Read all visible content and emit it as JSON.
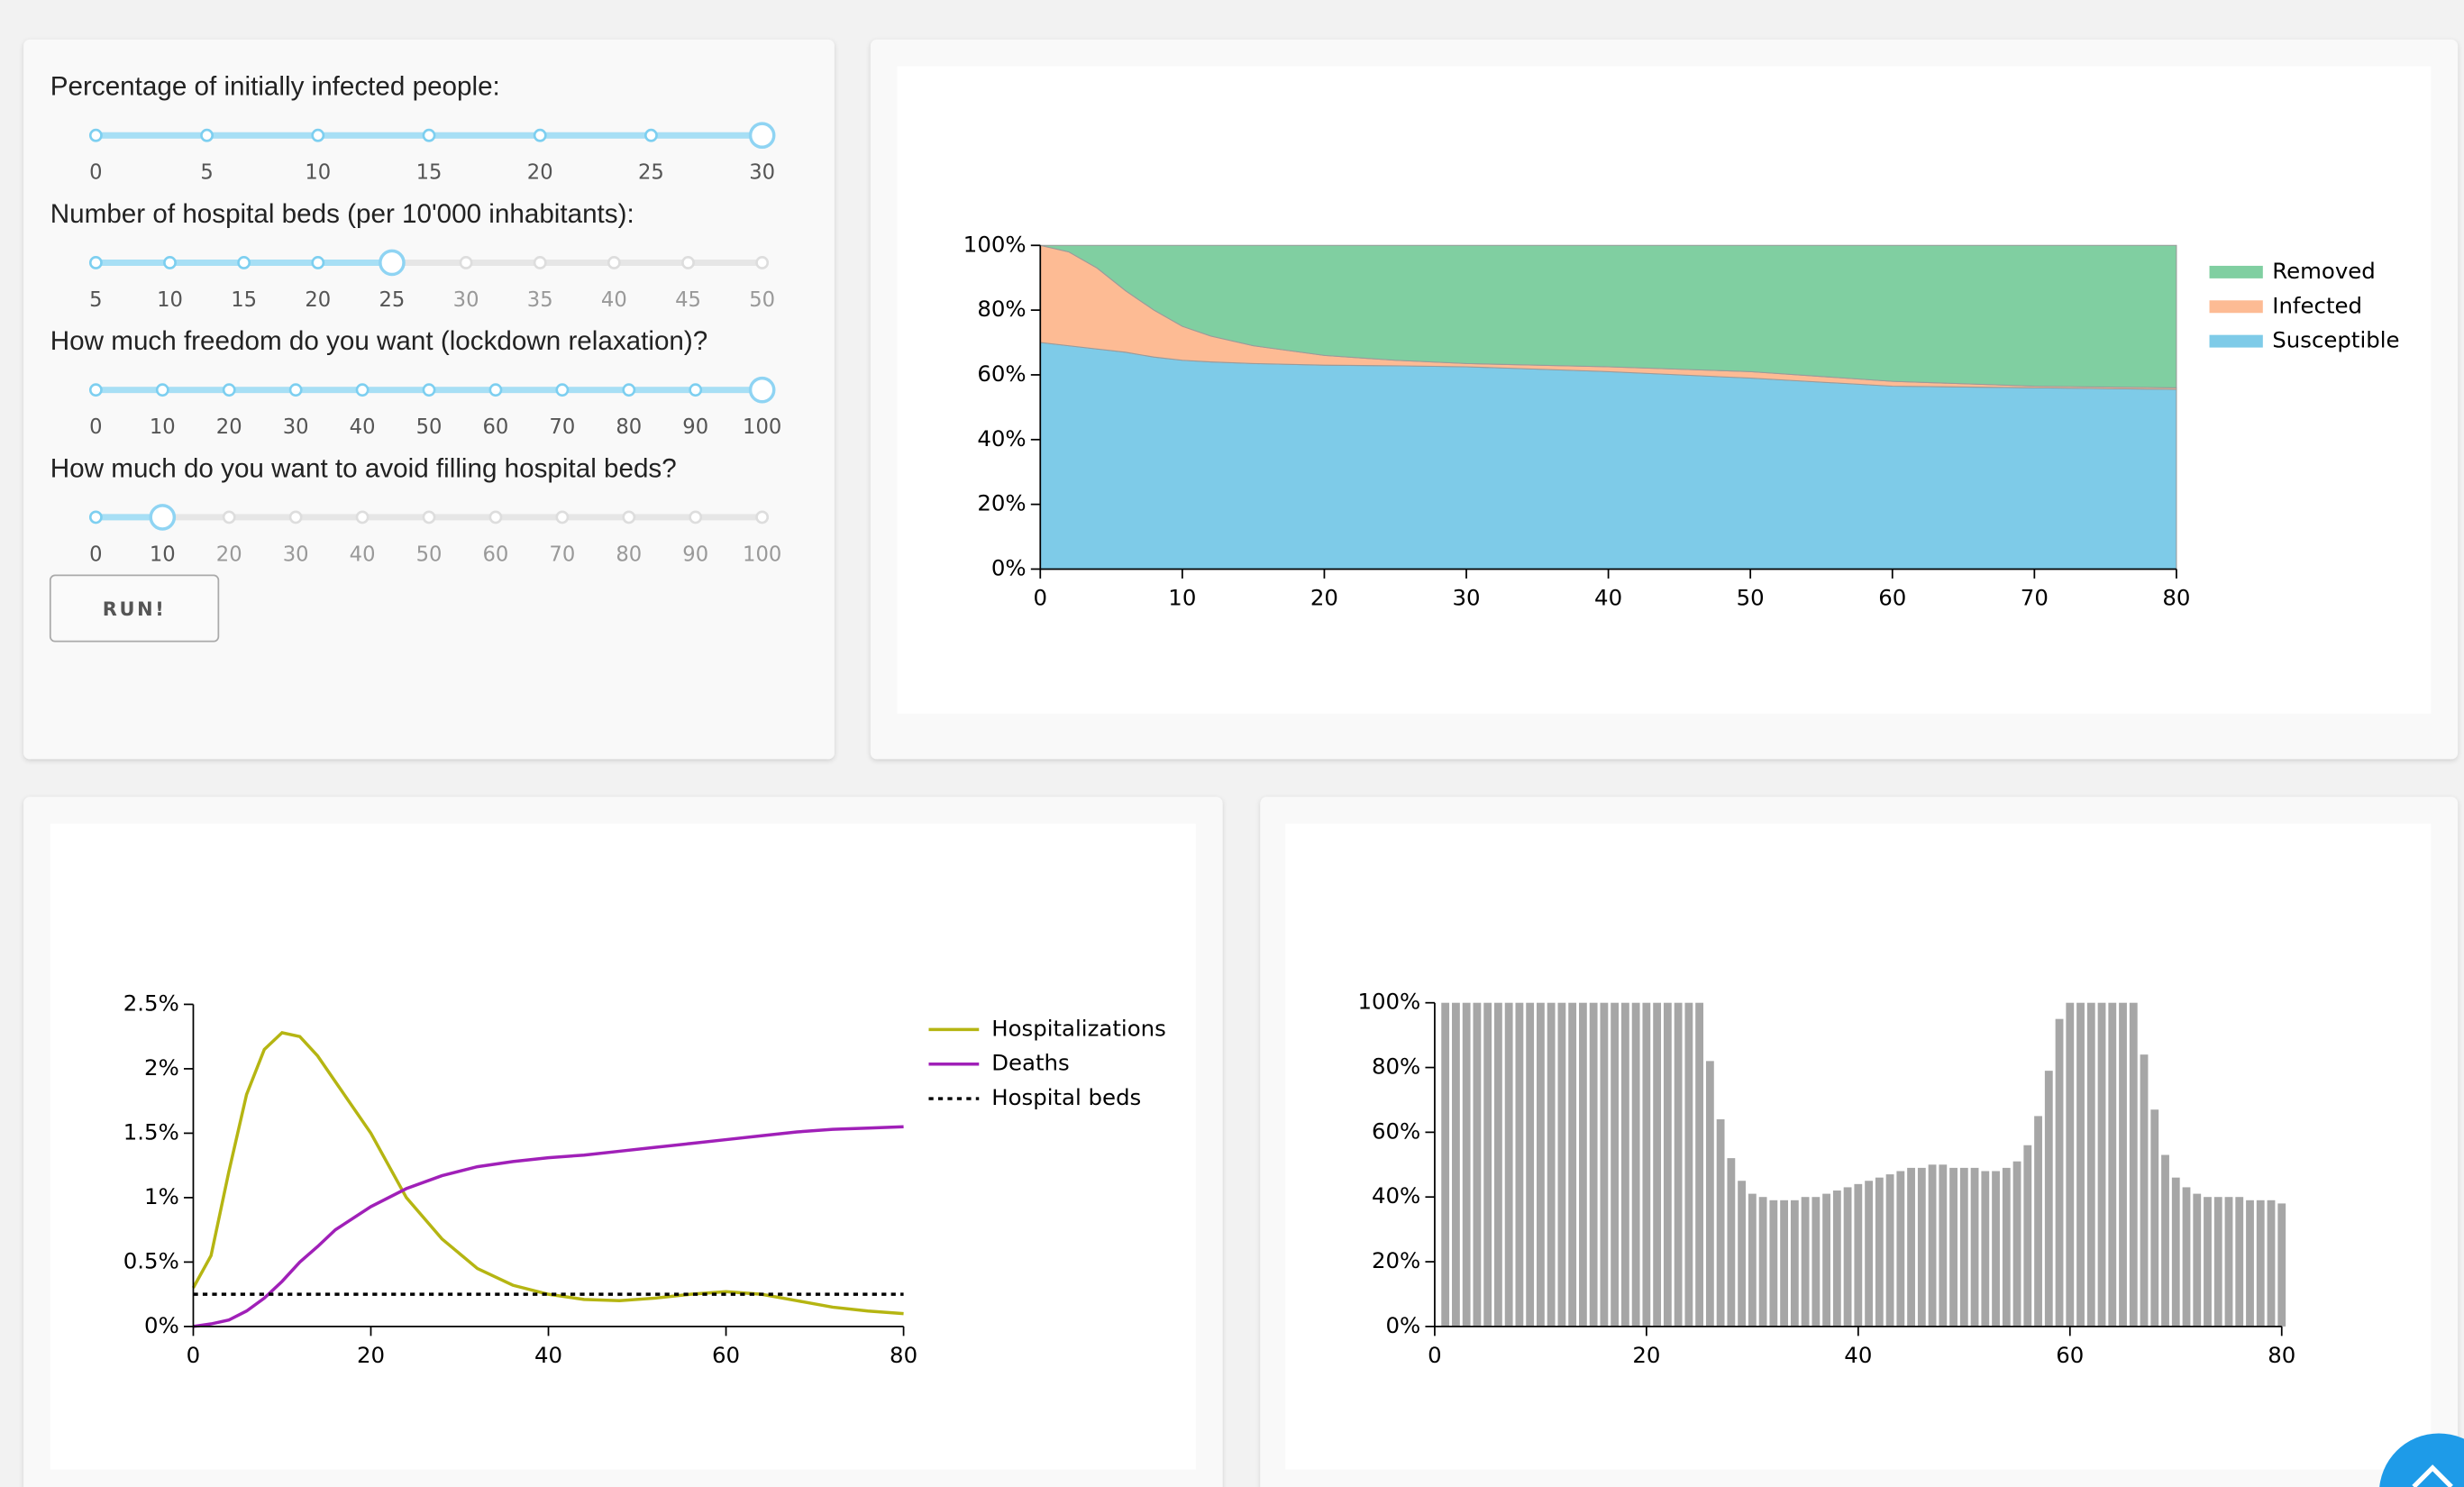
{
  "controls": {
    "sliders": [
      {
        "label": "Percentage of initially infected people:",
        "ticks": [
          0,
          5,
          10,
          15,
          20,
          25,
          30
        ],
        "value": 30
      },
      {
        "label": "Number of hospital beds (per 10'000 inhabitants):",
        "ticks": [
          5,
          10,
          15,
          20,
          25,
          30,
          35,
          40,
          45,
          50
        ],
        "value": 25
      },
      {
        "label": "How much freedom do you want (lockdown relaxation)?",
        "ticks": [
          0,
          10,
          20,
          30,
          40,
          50,
          60,
          70,
          80,
          90,
          100
        ],
        "value": 100
      },
      {
        "label": "How much do you want to avoid filling hospital beds?",
        "ticks": [
          0,
          10,
          20,
          30,
          40,
          50,
          60,
          70,
          80,
          90,
          100
        ],
        "value": 10
      }
    ],
    "button": "RUN!"
  },
  "chart_data": [
    {
      "type": "area",
      "x": [
        0,
        2,
        4,
        6,
        8,
        10,
        12,
        15,
        20,
        25,
        30,
        40,
        50,
        60,
        70,
        80
      ],
      "series": [
        {
          "name": "Susceptible",
          "color": "#7ecbe8",
          "values": [
            70,
            69,
            68,
            67,
            65.5,
            64.5,
            64,
            63.5,
            63,
            62.8,
            62.5,
            61,
            59,
            56.5,
            56,
            55.5
          ]
        },
        {
          "name": "Infected",
          "color": "#fdbb94",
          "values": [
            30,
            29,
            25,
            19,
            14.5,
            10.5,
            8,
            5.5,
            3,
            1.7,
            1,
            1.5,
            2,
            1.5,
            0.5,
            0.5
          ]
        },
        {
          "name": "Removed",
          "color": "#80cfa1",
          "values": [
            0,
            2,
            7,
            14,
            20,
            25,
            28,
            31,
            34,
            35.5,
            36.5,
            37.5,
            39,
            42,
            43.5,
            44
          ]
        }
      ],
      "xlim": [
        0,
        80
      ],
      "xticks": [
        0,
        10,
        20,
        30,
        40,
        50,
        60,
        70,
        80
      ],
      "ylim": [
        0,
        100
      ],
      "yticks": [
        {
          "value": 0,
          "label": "0%"
        },
        {
          "value": 20,
          "label": "20%"
        },
        {
          "value": 40,
          "label": "40%"
        },
        {
          "value": 60,
          "label": "60%"
        },
        {
          "value": 80,
          "label": "80%"
        },
        {
          "value": 100,
          "label": "100%"
        }
      ]
    },
    {
      "type": "line",
      "x": [
        0,
        2,
        4,
        6,
        8,
        10,
        12,
        14,
        16,
        20,
        24,
        28,
        32,
        36,
        40,
        44,
        48,
        52,
        56,
        60,
        64,
        68,
        72,
        76,
        80
      ],
      "series": [
        {
          "name": "Hospitalizations",
          "color": "#b5b512",
          "values": [
            0.3,
            0.55,
            1.2,
            1.8,
            2.15,
            2.28,
            2.25,
            2.1,
            1.9,
            1.5,
            1.0,
            0.68,
            0.45,
            0.32,
            0.25,
            0.21,
            0.2,
            0.22,
            0.25,
            0.27,
            0.25,
            0.2,
            0.15,
            0.12,
            0.1
          ]
        },
        {
          "name": "Deaths",
          "color": "#a020b8",
          "values": [
            0,
            0.02,
            0.05,
            0.12,
            0.22,
            0.35,
            0.5,
            0.62,
            0.75,
            0.93,
            1.07,
            1.17,
            1.24,
            1.28,
            1.31,
            1.33,
            1.36,
            1.39,
            1.42,
            1.45,
            1.48,
            1.51,
            1.53,
            1.54,
            1.55
          ]
        },
        {
          "name": "Hospital beds",
          "color": "#000000",
          "dash": true,
          "values": [
            0.25,
            0.25,
            0.25,
            0.25,
            0.25,
            0.25,
            0.25,
            0.25,
            0.25,
            0.25,
            0.25,
            0.25,
            0.25,
            0.25,
            0.25,
            0.25,
            0.25,
            0.25,
            0.25,
            0.25,
            0.25,
            0.25,
            0.25,
            0.25,
            0.25
          ]
        }
      ],
      "xlim": [
        0,
        80
      ],
      "xticks": [
        0,
        20,
        40,
        60,
        80
      ],
      "ylim": [
        0,
        2.5
      ],
      "yticks": [
        {
          "value": 0,
          "label": "0%"
        },
        {
          "value": 0.5,
          "label": "0.5%"
        },
        {
          "value": 1,
          "label": "1%"
        },
        {
          "value": 1.5,
          "label": "1.5%"
        },
        {
          "value": 2,
          "label": "2%"
        },
        {
          "value": 2.5,
          "label": "2.5%"
        }
      ]
    },
    {
      "type": "bar",
      "color": "#a6a6a6",
      "x": [
        1,
        2,
        3,
        4,
        5,
        6,
        7,
        8,
        9,
        10,
        11,
        12,
        13,
        14,
        15,
        16,
        17,
        18,
        19,
        20,
        21,
        22,
        23,
        24,
        25,
        26,
        27,
        28,
        29,
        30,
        31,
        32,
        33,
        34,
        35,
        36,
        37,
        38,
        39,
        40,
        41,
        42,
        43,
        44,
        45,
        46,
        47,
        48,
        49,
        50,
        51,
        52,
        53,
        54,
        55,
        56,
        57,
        58,
        59,
        60,
        61,
        62,
        63,
        64,
        65,
        66,
        67,
        68,
        69,
        70,
        71,
        72,
        73,
        74,
        75,
        76,
        77,
        78,
        79,
        80
      ],
      "values": [
        100,
        100,
        100,
        100,
        100,
        100,
        100,
        100,
        100,
        100,
        100,
        100,
        100,
        100,
        100,
        100,
        100,
        100,
        100,
        100,
        100,
        100,
        100,
        100,
        100,
        82,
        64,
        52,
        45,
        41,
        40,
        39,
        39,
        39,
        40,
        40,
        41,
        42,
        43,
        44,
        45,
        46,
        47,
        48,
        49,
        49,
        50,
        50,
        49,
        49,
        49,
        48,
        48,
        49,
        51,
        56,
        65,
        79,
        95,
        100,
        100,
        100,
        100,
        100,
        100,
        100,
        84,
        67,
        53,
        46,
        43,
        41,
        40,
        40,
        40,
        40,
        39,
        39,
        39,
        38
      ],
      "xlim": [
        0,
        80
      ],
      "xticks": [
        0,
        20,
        40,
        60,
        80
      ],
      "ylim": [
        0,
        100
      ],
      "yticks": [
        {
          "value": 0,
          "label": "0%"
        },
        {
          "value": 20,
          "label": "20%"
        },
        {
          "value": 40,
          "label": "40%"
        },
        {
          "value": 60,
          "label": "60%"
        },
        {
          "value": 80,
          "label": "80%"
        },
        {
          "value": 100,
          "label": "100%"
        }
      ]
    }
  ]
}
